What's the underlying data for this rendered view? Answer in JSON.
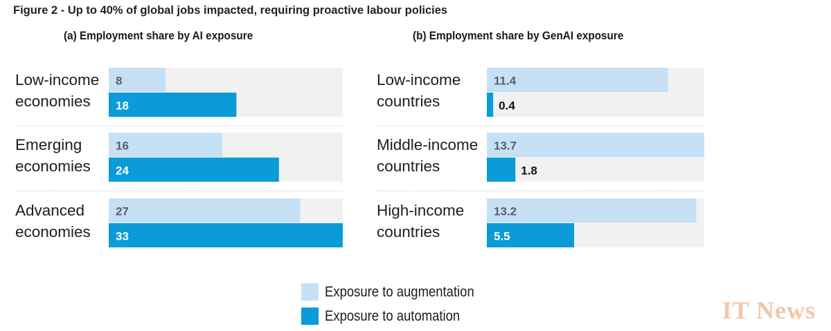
{
  "figure_title": "Figure 2 - Up to 40% of global jobs impacted, requiring proactive labour policies",
  "colors": {
    "augmentation": "#c6e0f5",
    "automation": "#0a9bd8",
    "track": "#f1f1f1"
  },
  "chart_data": [
    {
      "type": "bar",
      "orientation": "horizontal",
      "title": "(a) Employment share by AI exposure",
      "xlim": [
        0,
        33
      ],
      "categories": [
        [
          "Low-income",
          "economies"
        ],
        [
          "Emerging",
          "economies"
        ],
        [
          "Advanced",
          "economies"
        ]
      ],
      "series": [
        {
          "name": "Exposure to augmentation",
          "values": [
            8,
            16,
            27
          ]
        },
        {
          "name": "Exposure to automation",
          "values": [
            18,
            24,
            33
          ]
        }
      ]
    },
    {
      "type": "bar",
      "orientation": "horizontal",
      "title": "(b) Employment share by GenAI exposure",
      "xlim": [
        0,
        13.7
      ],
      "categories": [
        [
          "Low-income",
          "countries"
        ],
        [
          "Middle-income",
          "countries"
        ],
        [
          "High-income",
          "countries"
        ]
      ],
      "series": [
        {
          "name": "Exposure to augmentation",
          "values": [
            11.4,
            13.7,
            13.2
          ]
        },
        {
          "name": "Exposure to automation",
          "values": [
            0.4,
            1.8,
            5.5
          ]
        }
      ]
    }
  ],
  "legend": [
    {
      "label": "Exposure to augmentation",
      "color": "#c6e0f5"
    },
    {
      "label": "Exposure to automation",
      "color": "#0a9bd8"
    }
  ],
  "watermark": "IT News"
}
